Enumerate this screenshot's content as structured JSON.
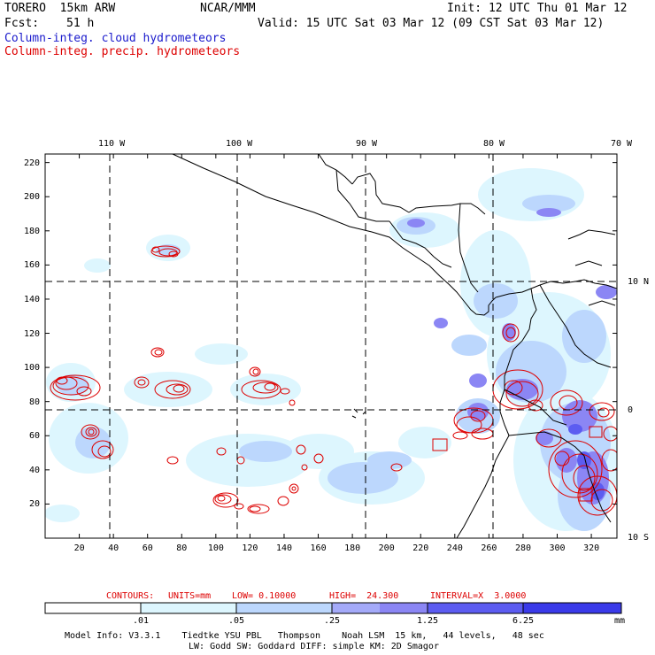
{
  "header": {
    "model": "TORERO  15km ARW",
    "org": "NCAR/MMM",
    "init": "Init: 12 UTC Thu 01 Mar 12",
    "fcst_label": "Fcst:",
    "fcst_value": "51 h",
    "valid": "Valid: 15 UTC Sat 03 Mar 12 (09 CST Sat 03 Mar 12)",
    "field1": "Column-integ. cloud hydrometeors",
    "field2": "Column-integ. precip. hydrometeors",
    "field1_color": "#1a1acc",
    "field2_color": "#dd0000"
  },
  "axes": {
    "lon_labels": [
      "110 W",
      "100 W",
      "90 W",
      "80 W",
      "70 W"
    ],
    "lat_labels": [
      "10 N",
      "0",
      "10 S"
    ],
    "x_ticks": [
      "20",
      "40",
      "60",
      "80",
      "100",
      "120",
      "140",
      "160",
      "180",
      "200",
      "220",
      "240",
      "260",
      "280",
      "300",
      "320"
    ],
    "y_ticks": [
      "220",
      "200",
      "180",
      "160",
      "140",
      "120",
      "100",
      "80",
      "60",
      "40",
      "20"
    ]
  },
  "contour_info": {
    "contours_label": "CONTOURS:",
    "units": "UNITS=mm",
    "low": "LOW= 0.10000",
    "high": "HIGH=  24.300",
    "interval": "INTERVAL=X  3.0000"
  },
  "colorbar": {
    "levels": [
      ".01",
      ".05",
      ".25",
      "1.25",
      "6.25"
    ],
    "unit": "mm",
    "colors": [
      "#ffffff",
      "#ddf6fe",
      "#bcd7fd",
      "#a4aaf9",
      "#8b86f4",
      "#5c5cf1",
      "#3a3ae9"
    ]
  },
  "footer": {
    "line1": "Model Info: V3.3.1    Tiedtke YSU PBL   Thompson    Noah LSM  15 km,   44 levels,   48 sec",
    "line2": "LW: Godd SW: Goddard DIFF: simple KM: 2D Smagor"
  },
  "map": {
    "cloud_color": "#bcd7fd",
    "cloud_dark_color": "#8b86f4",
    "precip_color": "#dd0000"
  }
}
